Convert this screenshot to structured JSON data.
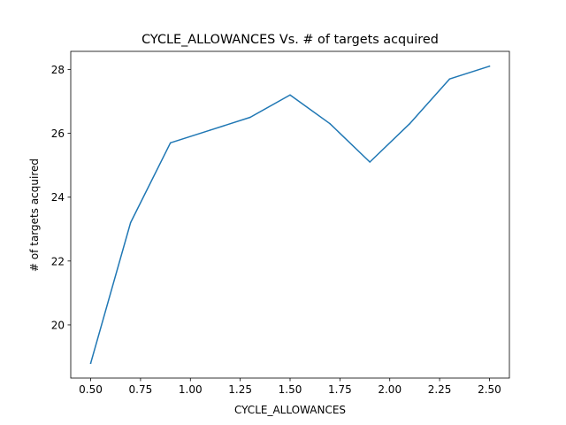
{
  "chart_data": {
    "type": "line",
    "title": "CYCLE_ALLOWANCES Vs. # of targets acquired",
    "xlabel": "CYCLE_ALLOWANCES",
    "ylabel": "# of targets acquired",
    "x": [
      0.5,
      0.7,
      0.9,
      1.1,
      1.3,
      1.5,
      1.7,
      1.9,
      2.1,
      2.3,
      2.5
    ],
    "series": [
      {
        "values": [
          18.8,
          23.2,
          25.7,
          26.1,
          26.5,
          27.2,
          26.3,
          25.1,
          26.3,
          27.7,
          28.1
        ]
      }
    ],
    "xticks": [
      0.5,
      0.75,
      1.0,
      1.25,
      1.5,
      1.75,
      2.0,
      2.25,
      2.5
    ],
    "xtick_labels": [
      "0.50",
      "0.75",
      "1.00",
      "1.25",
      "1.50",
      "1.75",
      "2.00",
      "2.25",
      "2.50"
    ],
    "yticks": [
      20,
      22,
      24,
      26,
      28
    ],
    "ytick_labels": [
      "20",
      "22",
      "24",
      "26",
      "28"
    ],
    "xlim": [
      0.4,
      2.6
    ],
    "ylim": [
      18.335,
      28.565
    ],
    "grid": false,
    "line_color": "#1f77b4"
  }
}
